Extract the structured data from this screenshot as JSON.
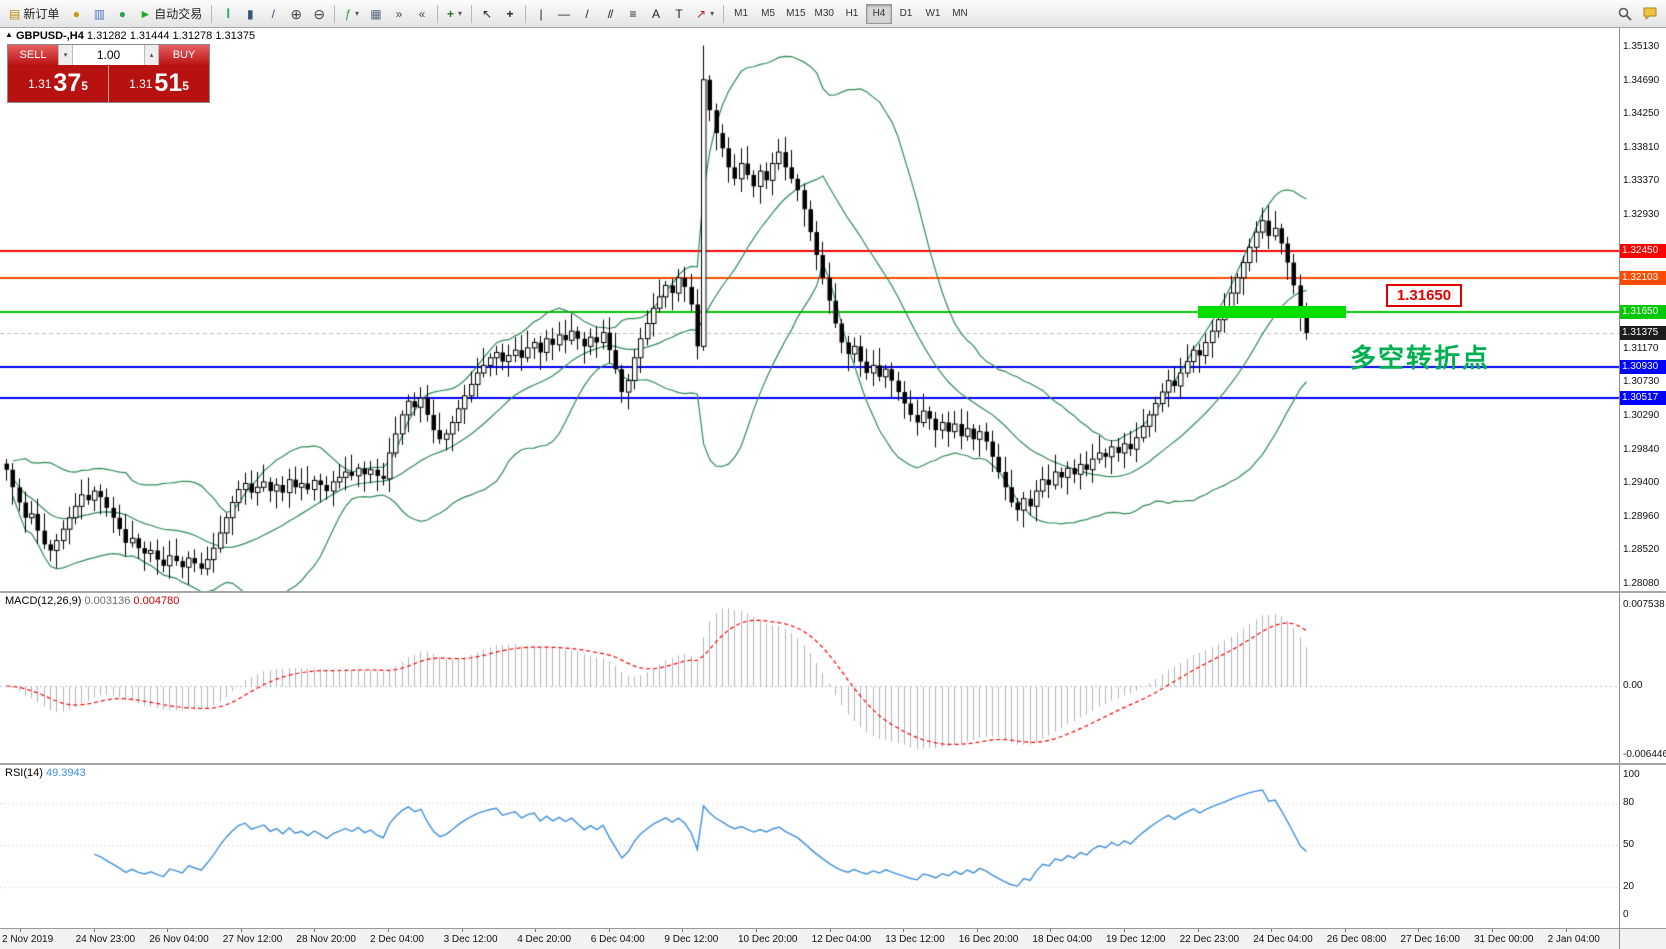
{
  "toolbar": {
    "new_order": "新订单",
    "autotrading": "自动交易",
    "timeframes": [
      "M1",
      "M5",
      "M15",
      "M30",
      "H1",
      "H4",
      "D1",
      "W1",
      "MN"
    ],
    "active_timeframe": "H4"
  },
  "icons": {
    "new_order": "▤",
    "profile": "●",
    "charts": "▥",
    "market_watch": "●",
    "autotrade": "►",
    "bars": "|||",
    "candles": "▮",
    "line_chart": "/",
    "zoom_in": "⊕",
    "zoom_out": "⊖",
    "indicators": "ƒ",
    "tile": "▦",
    "autoscroll": "»",
    "shift": "«",
    "new_object": "+",
    "cursor": "↖",
    "crosshair": "+",
    "vline": "|",
    "hline": "—",
    "trendline": "/",
    "channel": "//",
    "fibo": "≡",
    "text": "A",
    "label": "T",
    "arrow": "↗",
    "caret": "▾",
    "spin_up": "▴",
    "spin_down": "▾",
    "panel": "■",
    "title_arrow": "▲"
  },
  "chart_header": {
    "symbol": "GBPUSD-,H4",
    "ohlc": "1.31282 1.31444 1.31278 1.31375"
  },
  "trade_panel": {
    "sell": "SELL",
    "buy": "BUY",
    "lot": "1.00",
    "sell_price": {
      "prefix": "1.31",
      "big": "37",
      "sup": "5"
    },
    "buy_price": {
      "prefix": "1.31",
      "big": "51",
      "sup": "5"
    }
  },
  "macd_panel": {
    "name": "MACD(12,26,9)",
    "value_main": "0.003136",
    "value_signal": "0.004780",
    "scale": [
      "0.007538",
      "0.00",
      "-0.006446"
    ]
  },
  "rsi_panel": {
    "name": "RSI(14)",
    "value": "49.3943",
    "scale": [
      "100",
      "80",
      "50",
      "20",
      "0"
    ]
  },
  "annotations": {
    "price_callout": "1.31650",
    "note": "多空转折点"
  },
  "chart_data": {
    "type": "candlestick",
    "title": "GBPUSD- H4",
    "y_ticks": [
      "1.35130",
      "1.34690",
      "1.34250",
      "1.33810",
      "1.33370",
      "1.32930",
      "1.31170",
      "1.30730",
      "1.30290",
      "1.29840",
      "1.29400",
      "1.28960",
      "1.28520",
      "1.28080"
    ],
    "x_labels": [
      "2 Nov 2019",
      "24 Nov 23:00",
      "26 Nov 04:00",
      "27 Nov 12:00",
      "28 Nov 20:00",
      "2 Dec 04:00",
      "3 Dec 12:00",
      "4 Dec 20:00",
      "6 Dec 04:00",
      "9 Dec 12:00",
      "10 Dec 20:00",
      "12 Dec 04:00",
      "13 Dec 12:00",
      "16 Dec 20:00",
      "18 Dec 04:00",
      "19 Dec 12:00",
      "22 Dec 23:00",
      "24 Dec 04:00",
      "26 Dec 08:00",
      "27 Dec 16:00",
      "31 Dec 00:00",
      "2 Jan 04:00"
    ],
    "closes": [
      1.2958,
      1.2935,
      1.2915,
      1.2895,
      1.29,
      1.2878,
      1.286,
      1.2852,
      1.2865,
      1.288,
      1.2895,
      1.291,
      1.2925,
      1.2918,
      1.293,
      1.2922,
      1.2908,
      1.2895,
      1.288,
      1.2862,
      1.2868,
      1.2855,
      1.2848,
      1.2852,
      1.284,
      1.2832,
      1.2845,
      1.2838,
      1.283,
      1.2842,
      1.2835,
      1.2828,
      1.284,
      1.2855,
      1.2875,
      1.2895,
      1.2915,
      1.2932,
      1.294,
      1.2928,
      1.2935,
      1.2942,
      1.293,
      1.2938,
      1.2928,
      1.2945,
      1.2935,
      1.294,
      1.2932,
      1.2944,
      1.2938,
      1.293,
      1.2942,
      1.2948,
      1.2955,
      1.295,
      1.296,
      1.2952,
      1.2958,
      1.295,
      1.2946,
      1.298,
      1.3005,
      1.303,
      1.3048,
      1.304,
      1.3052,
      1.303,
      1.301,
      1.2998,
      1.3005,
      1.302,
      1.3038,
      1.3055,
      1.307,
      1.3085,
      1.3095,
      1.3105,
      1.3112,
      1.31,
      1.3108,
      1.3115,
      1.3105,
      1.3118,
      1.3125,
      1.3112,
      1.313,
      1.3122,
      1.3135,
      1.3128,
      1.314,
      1.313,
      1.312,
      1.3132,
      1.3125,
      1.3138,
      1.3115,
      1.309,
      1.306,
      1.3075,
      1.3105,
      1.313,
      1.315,
      1.317,
      1.3185,
      1.32,
      1.319,
      1.321,
      1.3198,
      1.3175,
      1.312,
      1.347,
      1.343,
      1.34,
      1.338,
      1.3355,
      1.334,
      1.336,
      1.3345,
      1.333,
      1.335,
      1.3338,
      1.336,
      1.3375,
      1.3355,
      1.334,
      1.3325,
      1.33,
      1.327,
      1.324,
      1.321,
      1.318,
      1.315,
      1.3125,
      1.311,
      1.312,
      1.31,
      1.3085,
      1.3095,
      1.308,
      1.309,
      1.3075,
      1.306,
      1.3045,
      1.303,
      1.302,
      1.3035,
      1.3025,
      1.301,
      1.302,
      1.3008,
      1.3018,
      1.3002,
      1.3012,
      1.2998,
      1.3008,
      1.2995,
      1.2975,
      1.2955,
      1.2935,
      1.2915,
      1.2905,
      1.292,
      1.291,
      1.293,
      1.2945,
      1.2938,
      1.2955,
      1.2948,
      1.296,
      1.2952,
      1.2965,
      1.2958,
      1.2972,
      1.298,
      1.2975,
      1.2988,
      1.298,
      1.2992,
      1.2985,
      1.3,
      1.3015,
      1.303,
      1.3045,
      1.306,
      1.3075,
      1.3068,
      1.3085,
      1.31,
      1.3115,
      1.3108,
      1.3125,
      1.314,
      1.3155,
      1.317,
      1.319,
      1.321,
      1.323,
      1.325,
      1.327,
      1.3285,
      1.3265,
      1.3275,
      1.3255,
      1.323,
      1.32,
      1.316,
      1.31375
    ],
    "extremes": {
      "high": 1.3515,
      "low": 1.282
    },
    "current_price": {
      "value": 1.31375,
      "label": "1.31375"
    },
    "levels": [
      {
        "value": 1.3245,
        "label": "1.32450",
        "color": "#ff0000"
      },
      {
        "value": 1.32103,
        "label": "1.32103",
        "color": "#ff4a00"
      },
      {
        "value": 1.3165,
        "label": "1.31650",
        "color": "#00c800"
      },
      {
        "value": 1.3093,
        "label": "1.30930",
        "color": "#0000ff"
      },
      {
        "value": 1.30517,
        "label": "1.30517",
        "color": "#0000ff"
      }
    ],
    "indicators": {
      "bollinger_period": 20,
      "bollinger_dev": 2,
      "macd": [
        12,
        26,
        9
      ],
      "rsi": 14
    },
    "colors": {
      "bull": "#ffffff",
      "bear": "#000000",
      "wick": "#000000",
      "bollinger": "#2e8b57",
      "macd_hist": "#b4b4b4",
      "macd_signal": "#ff0000",
      "rsi": "#3f8fdc",
      "zone": "#00dd00",
      "note": "#00b050",
      "callout": "#e00000"
    }
  }
}
